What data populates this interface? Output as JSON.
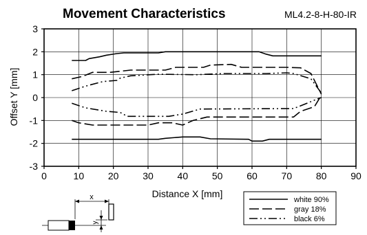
{
  "chart_data": {
    "type": "line",
    "title": "Movement Characteristics",
    "subtitle": "ML4.2-8-H-80-IR",
    "xlabel": "Distance X [mm]",
    "ylabel": "Offset Y [mm]",
    "xlim": [
      0,
      90
    ],
    "ylim": [
      -3,
      3
    ],
    "xticks": [
      0,
      10,
      20,
      30,
      40,
      50,
      60,
      70,
      80,
      90
    ],
    "yticks": [
      -3,
      -2,
      -1,
      0,
      1,
      2,
      3
    ],
    "grid": true,
    "legend_position": "bottom-right",
    "diagram_labels": {
      "x": "x",
      "y": "y"
    },
    "series": [
      {
        "name": "white 90%",
        "style": "solid",
        "upper": [
          [
            8,
            1.62
          ],
          [
            12,
            1.62
          ],
          [
            13,
            1.7
          ],
          [
            16,
            1.78
          ],
          [
            18,
            1.85
          ],
          [
            21,
            1.92
          ],
          [
            23,
            1.95
          ],
          [
            33,
            1.95
          ],
          [
            35,
            2.0
          ],
          [
            42,
            2.0
          ],
          [
            62,
            2.0
          ],
          [
            64,
            1.9
          ],
          [
            66,
            1.82
          ],
          [
            80,
            1.82
          ]
        ],
        "lower": [
          [
            8,
            -1.82
          ],
          [
            33,
            -1.82
          ],
          [
            35,
            -1.78
          ],
          [
            40,
            -1.72
          ],
          [
            45,
            -1.72
          ],
          [
            48,
            -1.8
          ],
          [
            59,
            -1.82
          ],
          [
            60,
            -1.9
          ],
          [
            63,
            -1.9
          ],
          [
            65,
            -1.82
          ],
          [
            80,
            -1.82
          ]
        ]
      },
      {
        "name": "gray 18%",
        "style": "dashed",
        "upper": [
          [
            8,
            0.82
          ],
          [
            11,
            0.92
          ],
          [
            14,
            1.1
          ],
          [
            19,
            1.1
          ],
          [
            22,
            1.15
          ],
          [
            25,
            1.2
          ],
          [
            35,
            1.2
          ],
          [
            38,
            1.32
          ],
          [
            46,
            1.32
          ],
          [
            48,
            1.42
          ],
          [
            54,
            1.45
          ],
          [
            57,
            1.32
          ],
          [
            70,
            1.32
          ],
          [
            74,
            1.3
          ],
          [
            77,
            1.05
          ],
          [
            80,
            0.15
          ]
        ],
        "lower": [
          [
            8,
            -1.0
          ],
          [
            10,
            -1.1
          ],
          [
            14,
            -1.2
          ],
          [
            30,
            -1.2
          ],
          [
            33,
            -1.1
          ],
          [
            37,
            -1.1
          ],
          [
            40,
            -1.2
          ],
          [
            43,
            -1.0
          ],
          [
            47,
            -0.85
          ],
          [
            72,
            -0.85
          ],
          [
            74,
            -0.6
          ],
          [
            78,
            -0.4
          ],
          [
            80,
            0.1
          ]
        ]
      },
      {
        "name": "black 6%",
        "style": "dashdot",
        "upper": [
          [
            8,
            0.3
          ],
          [
            12,
            0.5
          ],
          [
            17,
            0.7
          ],
          [
            21,
            0.75
          ],
          [
            22,
            0.85
          ],
          [
            25,
            0.95
          ],
          [
            33,
            1.02
          ],
          [
            44,
            1.0
          ],
          [
            52,
            1.05
          ],
          [
            64,
            1.05
          ],
          [
            70,
            1.08
          ],
          [
            72,
            1.05
          ],
          [
            77,
            0.82
          ],
          [
            80,
            0.2
          ]
        ],
        "lower": [
          [
            8,
            -0.25
          ],
          [
            12,
            -0.45
          ],
          [
            18,
            -0.6
          ],
          [
            22,
            -0.65
          ],
          [
            24,
            -0.82
          ],
          [
            29,
            -0.82
          ],
          [
            36,
            -0.82
          ],
          [
            40,
            -0.72
          ],
          [
            45,
            -0.5
          ],
          [
            72,
            -0.48
          ],
          [
            75,
            -0.3
          ],
          [
            79,
            -0.05
          ],
          [
            80,
            0.0
          ]
        ]
      }
    ]
  }
}
